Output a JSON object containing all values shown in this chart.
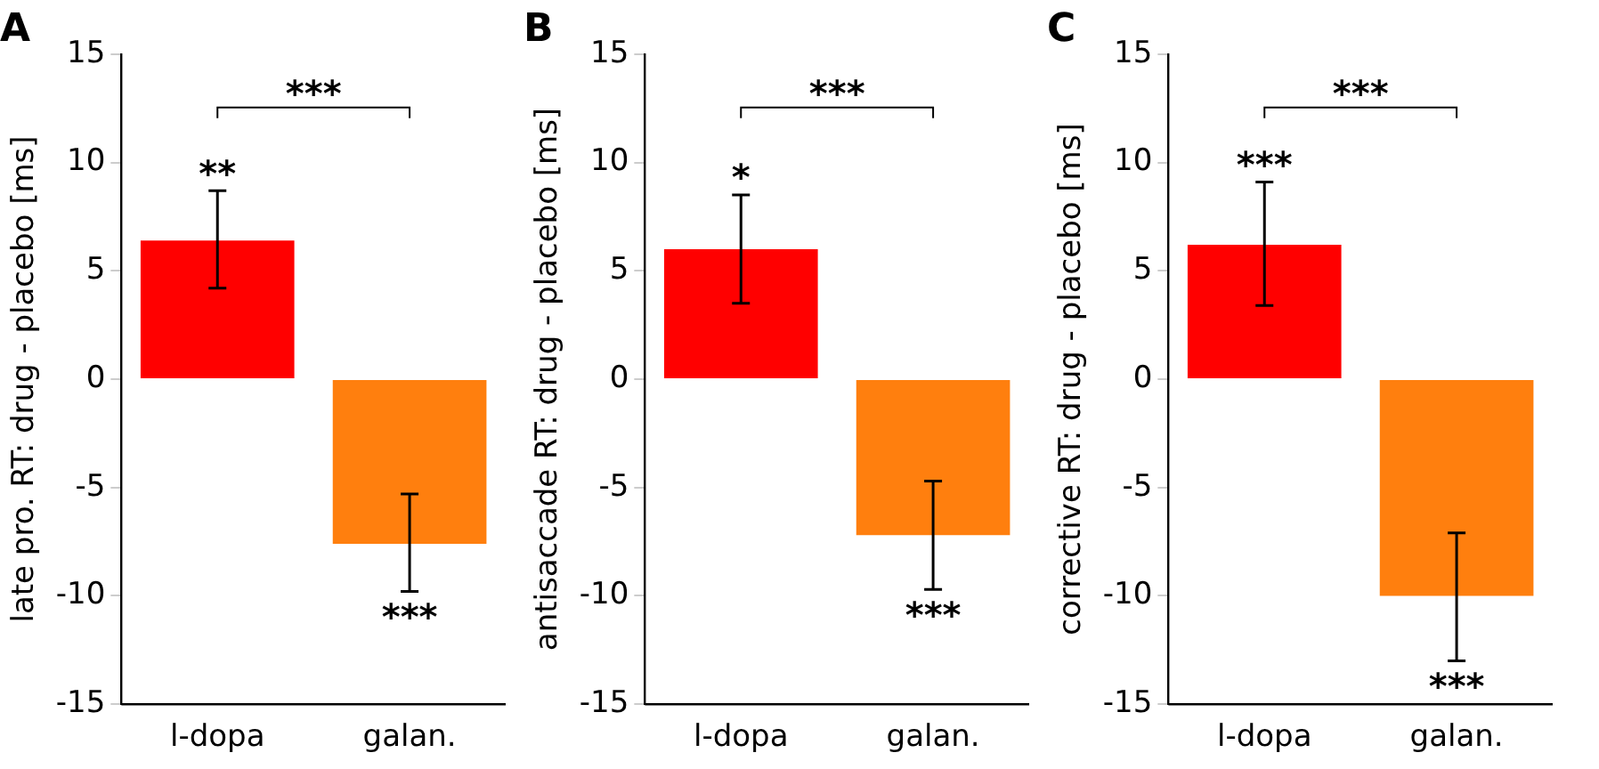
{
  "chart_data": [
    {
      "type": "bar",
      "title": "A",
      "ylabel": "late pro. RT: drug - placebo [ms]",
      "categories": [
        "l-dopa",
        "galan."
      ],
      "values": [
        6.4,
        -7.6
      ],
      "colors": [
        "#ff0000",
        "#ff7f0e"
      ],
      "errors": [
        [
          4.2,
          8.7
        ],
        [
          -9.8,
          -5.3
        ]
      ],
      "ylim": [
        -15,
        15
      ],
      "yticks": [
        -15,
        -10,
        -5,
        0,
        5,
        10,
        15
      ],
      "grid": false,
      "legend": false,
      "annotations": [
        {
          "text": "**",
          "x": "l-dopa",
          "y": 8.7
        },
        {
          "text": "***",
          "x": "galan.",
          "y": -9.8
        },
        "***"
      ]
    },
    {
      "type": "bar",
      "title": "B",
      "ylabel": "antisaccade RT: drug - placebo [ms]",
      "categories": [
        "l-dopa",
        "galan."
      ],
      "values": [
        6.0,
        -7.2
      ],
      "colors": [
        "#ff0000",
        "#ff7f0e"
      ],
      "errors": [
        [
          3.5,
          8.5
        ],
        [
          -9.7,
          -4.7
        ]
      ],
      "ylim": [
        -15,
        15
      ],
      "yticks": [
        -15,
        -10,
        -5,
        0,
        5,
        10,
        15
      ],
      "grid": false,
      "legend": false,
      "annotations": [
        {
          "text": "*",
          "x": "l-dopa",
          "y": 8.5
        },
        {
          "text": "***",
          "x": "galan.",
          "y": -9.7
        },
        "***"
      ]
    },
    {
      "type": "bar",
      "title": "C",
      "ylabel": "corrective RT: drug - placebo [ms]",
      "categories": [
        "l-dopa",
        "galan."
      ],
      "values": [
        6.2,
        -10.0
      ],
      "colors": [
        "#ff0000",
        "#ff7f0e"
      ],
      "errors": [
        [
          3.4,
          9.1
        ],
        [
          -13.0,
          -7.1
        ]
      ],
      "ylim": [
        -15,
        15
      ],
      "yticks": [
        -15,
        -10,
        -5,
        0,
        5,
        10,
        15
      ],
      "grid": false,
      "legend": false,
      "annotations": [
        {
          "text": "***",
          "x": "l-dopa",
          "y": 9.1
        },
        {
          "text": "***",
          "x": "galan.",
          "y": -13.0
        },
        "***"
      ]
    }
  ]
}
